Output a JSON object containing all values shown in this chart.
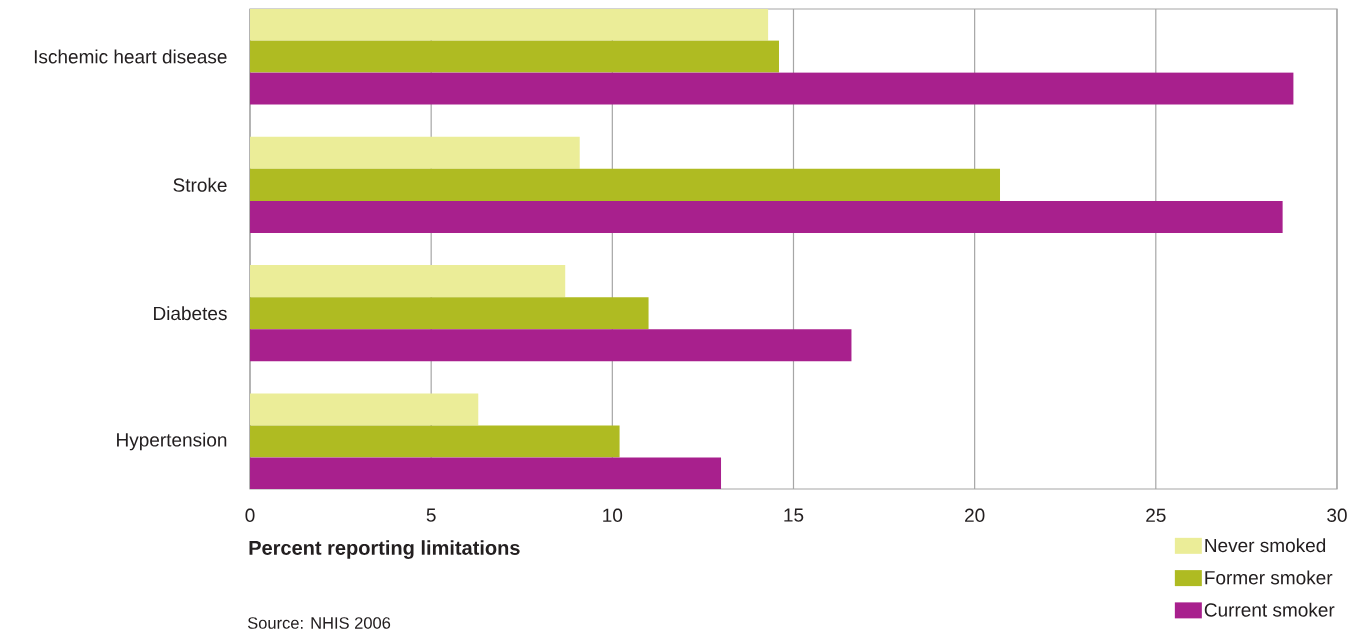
{
  "chart_data": {
    "type": "bar",
    "orientation": "horizontal",
    "xlabel": "Percent reporting limitations",
    "categories": [
      "Ischemic heart disease",
      "Stroke",
      "Diabetes",
      "Hypertension"
    ],
    "series": [
      {
        "name": "Never smoked",
        "color": "#ebed98",
        "values": [
          14.3,
          9.1,
          8.7,
          6.3
        ]
      },
      {
        "name": "Former smoker",
        "color": "#afbb22",
        "values": [
          14.6,
          20.7,
          11.0,
          10.2
        ]
      },
      {
        "name": "Current smoker",
        "color": "#a8208d",
        "values": [
          28.8,
          28.5,
          16.6,
          13.0
        ]
      }
    ],
    "xlim": [
      0,
      30
    ],
    "xticks": [
      0,
      5,
      10,
      15,
      20,
      25,
      30
    ],
    "grid": "x",
    "legend": "bottom right",
    "annotations": [
      "Source: NHIS 2006"
    ]
  }
}
